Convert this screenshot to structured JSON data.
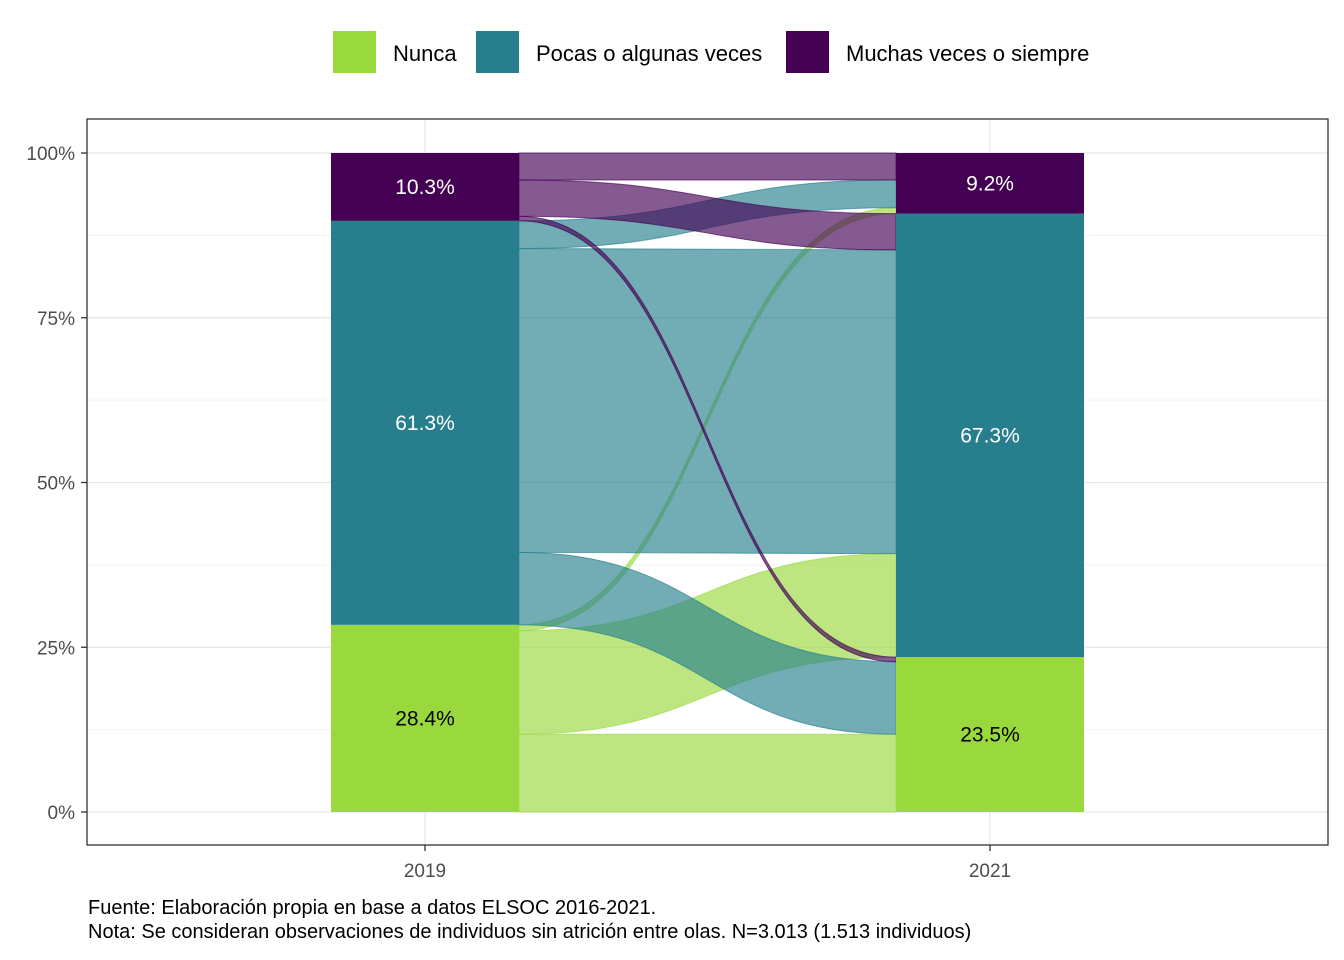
{
  "chart_data": {
    "type": "alluvial",
    "x": [
      "2019",
      "2021"
    ],
    "categories": [
      "Nunca",
      "Pocas o algunas veces",
      "Muchas veces o siempre"
    ],
    "colors": {
      "Nunca": "#9ad93d",
      "Pocas o algunas veces": "#277f8e",
      "Muchas veces o siempre": "#440154"
    },
    "series": [
      {
        "name": "Nunca",
        "values": [
          28.4,
          23.5
        ],
        "labels": [
          "28.4%",
          "23.5%"
        ]
      },
      {
        "name": "Pocas o algunas veces",
        "values": [
          61.3,
          67.3
        ],
        "labels": [
          "61.3%",
          "67.3%"
        ]
      },
      {
        "name": "Muchas veces o siempre",
        "values": [
          10.3,
          9.2
        ],
        "labels": [
          "10.3%",
          "9.2%"
        ]
      }
    ],
    "flows": [
      {
        "from": "Nunca",
        "to": "Nunca",
        "value": 11.8
      },
      {
        "from": "Nunca",
        "to": "Pocas o algunas veces",
        "value": 15.7
      },
      {
        "from": "Nunca",
        "to": "Muchas veces o siempre",
        "value": 0.9
      },
      {
        "from": "Pocas o algunas veces",
        "to": "Nunca",
        "value": 11.0
      },
      {
        "from": "Pocas o algunas veces",
        "to": "Pocas o algunas veces",
        "value": 46.1
      },
      {
        "from": "Pocas o algunas veces",
        "to": "Muchas veces o siempre",
        "value": 4.2
      },
      {
        "from": "Muchas veces o siempre",
        "to": "Nunca",
        "value": 0.7
      },
      {
        "from": "Muchas veces o siempre",
        "to": "Pocas o algunas veces",
        "value": 5.5
      },
      {
        "from": "Muchas veces o siempre",
        "to": "Muchas veces o siempre",
        "value": 4.1
      }
    ],
    "yticks": [
      "0%",
      "25%",
      "50%",
      "75%",
      "100%"
    ],
    "ytick_values": [
      0,
      25,
      50,
      75,
      100
    ],
    "ylim": [
      0,
      100
    ],
    "xlabel": "",
    "ylabel": "",
    "grid": true,
    "legend_position": "top"
  },
  "caption": {
    "source": "Fuente: Elaboración propia en base a datos ELSOC 2016-2021.",
    "note": "Nota: Se consideran observaciones de individuos sin atrición entre olas. N=3.013 (1.513 individuos)"
  }
}
